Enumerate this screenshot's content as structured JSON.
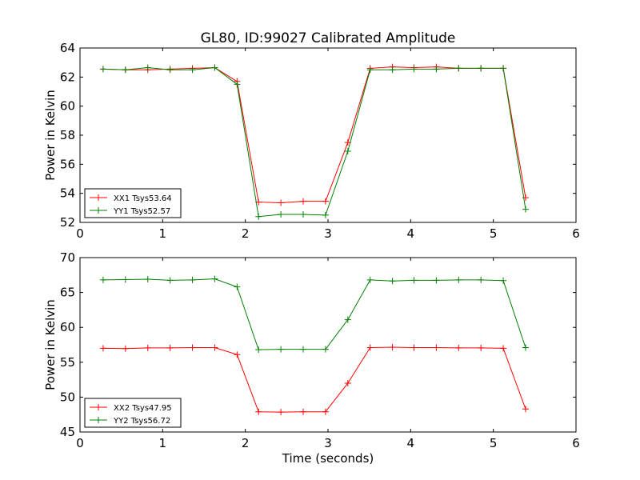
{
  "figure": {
    "title": "GL80, ID:99027 Calibrated Amplitude",
    "xlabel": "Time (seconds)"
  },
  "chart_data": [
    {
      "type": "line",
      "title": "GL80, ID:99027 Calibrated Amplitude",
      "xlabel": "",
      "ylabel": "Power in Kelvin",
      "xlim": [
        0,
        6
      ],
      "ylim": [
        52,
        64
      ],
      "xticks": [
        0,
        1,
        2,
        3,
        4,
        5,
        6
      ],
      "yticks": [
        52,
        54,
        56,
        58,
        60,
        62,
        64
      ],
      "grid": false,
      "legend_position": "lower-left",
      "series": [
        {
          "name": "XX1 Tsys53.64",
          "color": "#ff0000",
          "marker": "+",
          "x": [
            0.28,
            0.55,
            0.82,
            1.09,
            1.36,
            1.63,
            1.9,
            2.16,
            2.43,
            2.7,
            2.97,
            3.24,
            3.51,
            3.78,
            4.04,
            4.31,
            4.58,
            4.85,
            5.12,
            5.39
          ],
          "y": [
            62.55,
            62.5,
            62.5,
            62.55,
            62.6,
            62.65,
            61.7,
            53.4,
            53.35,
            53.45,
            53.45,
            57.5,
            62.6,
            62.7,
            62.65,
            62.7,
            62.6,
            62.6,
            62.6,
            53.7
          ]
        },
        {
          "name": "YY1 Tsys52.57",
          "color": "#008000",
          "marker": "+",
          "x": [
            0.28,
            0.55,
            0.82,
            1.09,
            1.36,
            1.63,
            1.9,
            2.16,
            2.43,
            2.7,
            2.97,
            3.24,
            3.51,
            3.78,
            4.04,
            4.31,
            4.58,
            4.85,
            5.12,
            5.39
          ],
          "y": [
            62.55,
            62.5,
            62.65,
            62.5,
            62.5,
            62.65,
            61.5,
            52.4,
            52.55,
            52.55,
            52.5,
            56.9,
            62.5,
            62.5,
            62.55,
            62.55,
            62.6,
            62.6,
            62.6,
            52.9
          ]
        }
      ]
    },
    {
      "type": "line",
      "title": "",
      "xlabel": "Time (seconds)",
      "ylabel": "Power in Kelvin",
      "xlim": [
        0,
        6
      ],
      "ylim": [
        45,
        70
      ],
      "xticks": [
        0,
        1,
        2,
        3,
        4,
        5,
        6
      ],
      "yticks": [
        45,
        50,
        55,
        60,
        65,
        70
      ],
      "grid": false,
      "legend_position": "lower-left",
      "series": [
        {
          "name": "XX2 Tsys47.95",
          "color": "#ff0000",
          "marker": "+",
          "x": [
            0.28,
            0.55,
            0.82,
            1.09,
            1.36,
            1.63,
            1.9,
            2.16,
            2.43,
            2.7,
            2.97,
            3.24,
            3.51,
            3.78,
            4.04,
            4.31,
            4.58,
            4.85,
            5.12,
            5.39
          ],
          "y": [
            57.0,
            56.95,
            57.05,
            57.05,
            57.1,
            57.1,
            56.1,
            47.9,
            47.85,
            47.9,
            47.9,
            52.0,
            57.1,
            57.15,
            57.1,
            57.1,
            57.05,
            57.05,
            57.0,
            48.3
          ]
        },
        {
          "name": "YY2 Tsys56.72",
          "color": "#008000",
          "marker": "+",
          "x": [
            0.28,
            0.55,
            0.82,
            1.09,
            1.36,
            1.63,
            1.9,
            2.16,
            2.43,
            2.7,
            2.97,
            3.24,
            3.51,
            3.78,
            4.04,
            4.31,
            4.58,
            4.85,
            5.12,
            5.39
          ],
          "y": [
            66.8,
            66.85,
            66.9,
            66.75,
            66.8,
            66.95,
            65.8,
            56.8,
            56.85,
            56.85,
            56.85,
            61.1,
            66.8,
            66.65,
            66.75,
            66.75,
            66.8,
            66.8,
            66.7,
            57.1
          ]
        }
      ]
    }
  ]
}
